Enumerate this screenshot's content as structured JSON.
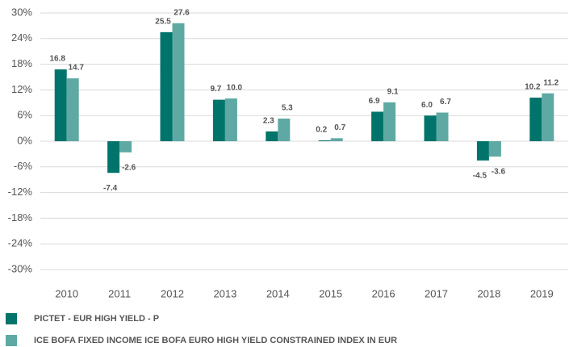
{
  "chart_data": {
    "type": "bar",
    "categories": [
      "2010",
      "2011",
      "2012",
      "2013",
      "2014",
      "2015",
      "2016",
      "2017",
      "2018",
      "2019"
    ],
    "series": [
      {
        "name": "PICTET - EUR HIGH YIELD - P",
        "color": "#00746b",
        "values": [
          16.8,
          -7.4,
          25.5,
          9.7,
          2.3,
          0.2,
          6.9,
          6.0,
          -4.5,
          10.2
        ],
        "value_labels": [
          "16.8",
          "-7.4",
          "25.5",
          "9.7",
          "2.3",
          "0.2",
          "6.9",
          "6.0",
          "-4.5",
          "10.2"
        ]
      },
      {
        "name": "ICE BOFA FIXED INCOME ICE BOFA EURO HIGH YIELD CONSTRAINED INDEX IN EUR",
        "color": "#5fa9a4",
        "values": [
          14.7,
          -2.6,
          27.6,
          10.0,
          5.3,
          0.7,
          9.1,
          6.7,
          -3.6,
          11.2
        ],
        "value_labels": [
          "14.7",
          "-2.6",
          "27.6",
          "10.0",
          "5.3",
          "0.7",
          "9.1",
          "6.7",
          "-3.6",
          "11.2"
        ]
      }
    ],
    "ylim": [
      -30,
      30
    ],
    "yticks": [
      {
        "value": -30,
        "label": "-30%"
      },
      {
        "value": -24,
        "label": "-24%"
      },
      {
        "value": -18,
        "label": "-18%"
      },
      {
        "value": -12,
        "label": "-12%"
      },
      {
        "value": -6,
        "label": "-6%"
      },
      {
        "value": 0,
        "label": "0%"
      },
      {
        "value": 6,
        "label": "6%"
      },
      {
        "value": 12,
        "label": "12%"
      },
      {
        "value": 18,
        "label": "18%"
      },
      {
        "value": 24,
        "label": "24%"
      },
      {
        "value": 30,
        "label": "30%"
      }
    ],
    "grid": true
  }
}
